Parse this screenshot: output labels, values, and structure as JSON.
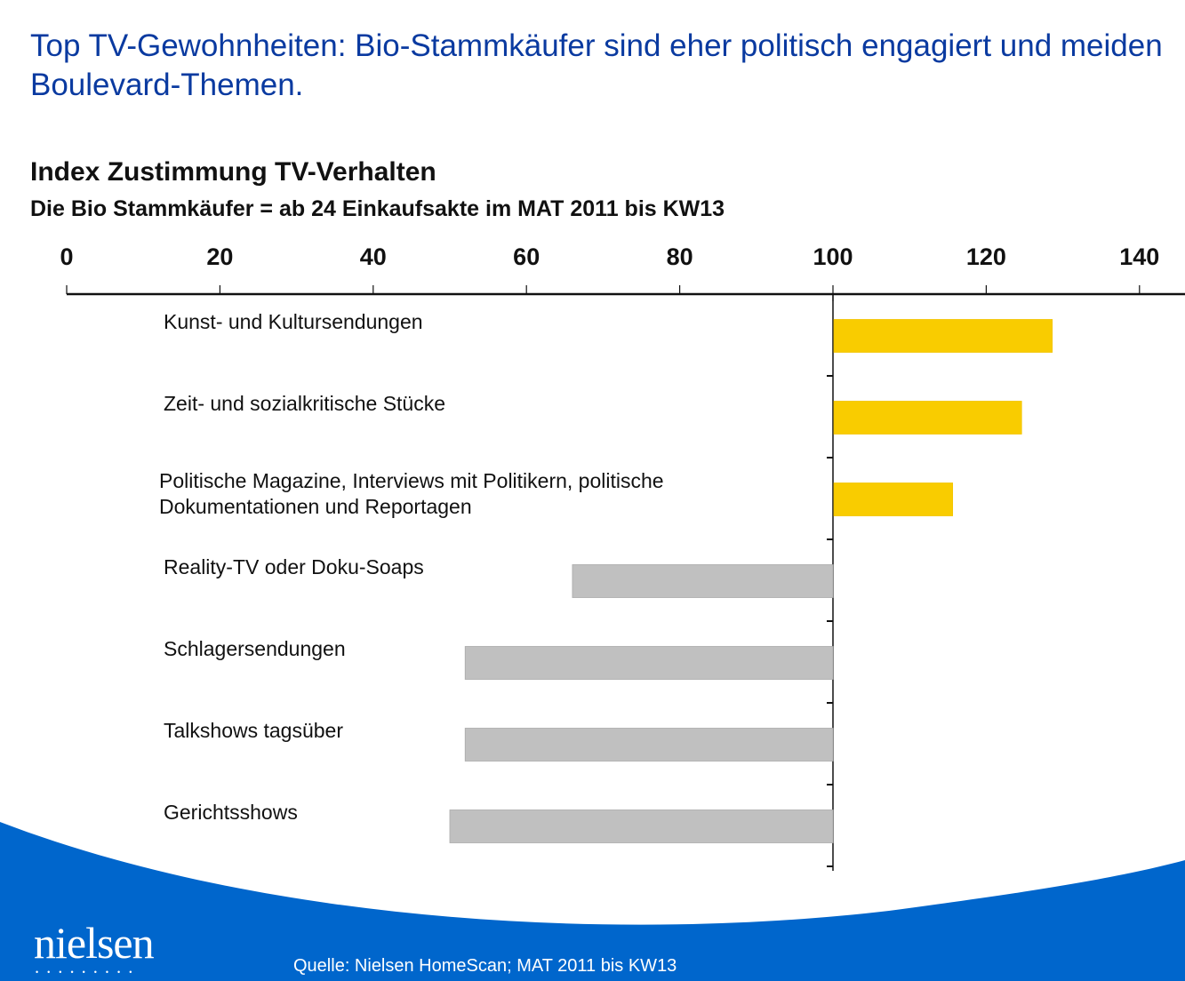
{
  "header": {
    "title": "Top TV-Gewohnheiten: Bio-Stammkäufer sind eher politisch engagiert und meiden Boulevard-Themen.",
    "subtitle": "Index Zustimmung TV-Verhalten",
    "subtitle2": "Die Bio Stammkäufer = ab 24 Einkaufsakte im MAT 2011 bis KW13"
  },
  "footer": {
    "logo": "nielsen",
    "logo_dots": "•••••••••",
    "source": "Quelle: Nielsen HomeScan; MAT 2011 bis KW13"
  },
  "colors": {
    "above_baseline": "#f9cc00",
    "below_baseline": "#c0c0c0",
    "title": "#0a3aa0",
    "band": "#0066cc"
  },
  "chart_data": {
    "type": "bar",
    "orientation": "horizontal",
    "title": "Index Zustimmung TV-Verhalten",
    "xlabel": "",
    "ylabel": "",
    "xlim": [
      0,
      140
    ],
    "baseline": 100,
    "xticks": [
      0,
      20,
      40,
      60,
      80,
      100,
      120,
      140
    ],
    "x_axis_position": "top",
    "grid": false,
    "categories": [
      "Kunst- und Kultursendungen",
      "Zeit- und sozialkritische Stücke",
      "Politische Magazine, Interviews mit Politikern, politische Dokumentationen und Reportagen",
      "Reality-TV oder Doku-Soaps",
      "Schlagersendungen",
      "Talkshows tagsüber",
      "Gerichtsshows"
    ],
    "category_lines": [
      [
        "Kunst- und Kultursendungen"
      ],
      [
        "Zeit- und sozialkritische Stücke"
      ],
      [
        "Politische Magazine, Interviews mit Politikern, politische",
        "Dokumentationen und Reportagen"
      ],
      [
        "Reality-TV oder Doku-Soaps"
      ],
      [
        "Schlagersendungen"
      ],
      [
        "Talkshows tagsüber"
      ],
      [
        "Gerichtsshows"
      ]
    ],
    "values": [
      128.5,
      124.5,
      115.5,
      66,
      52,
      52,
      50
    ]
  }
}
